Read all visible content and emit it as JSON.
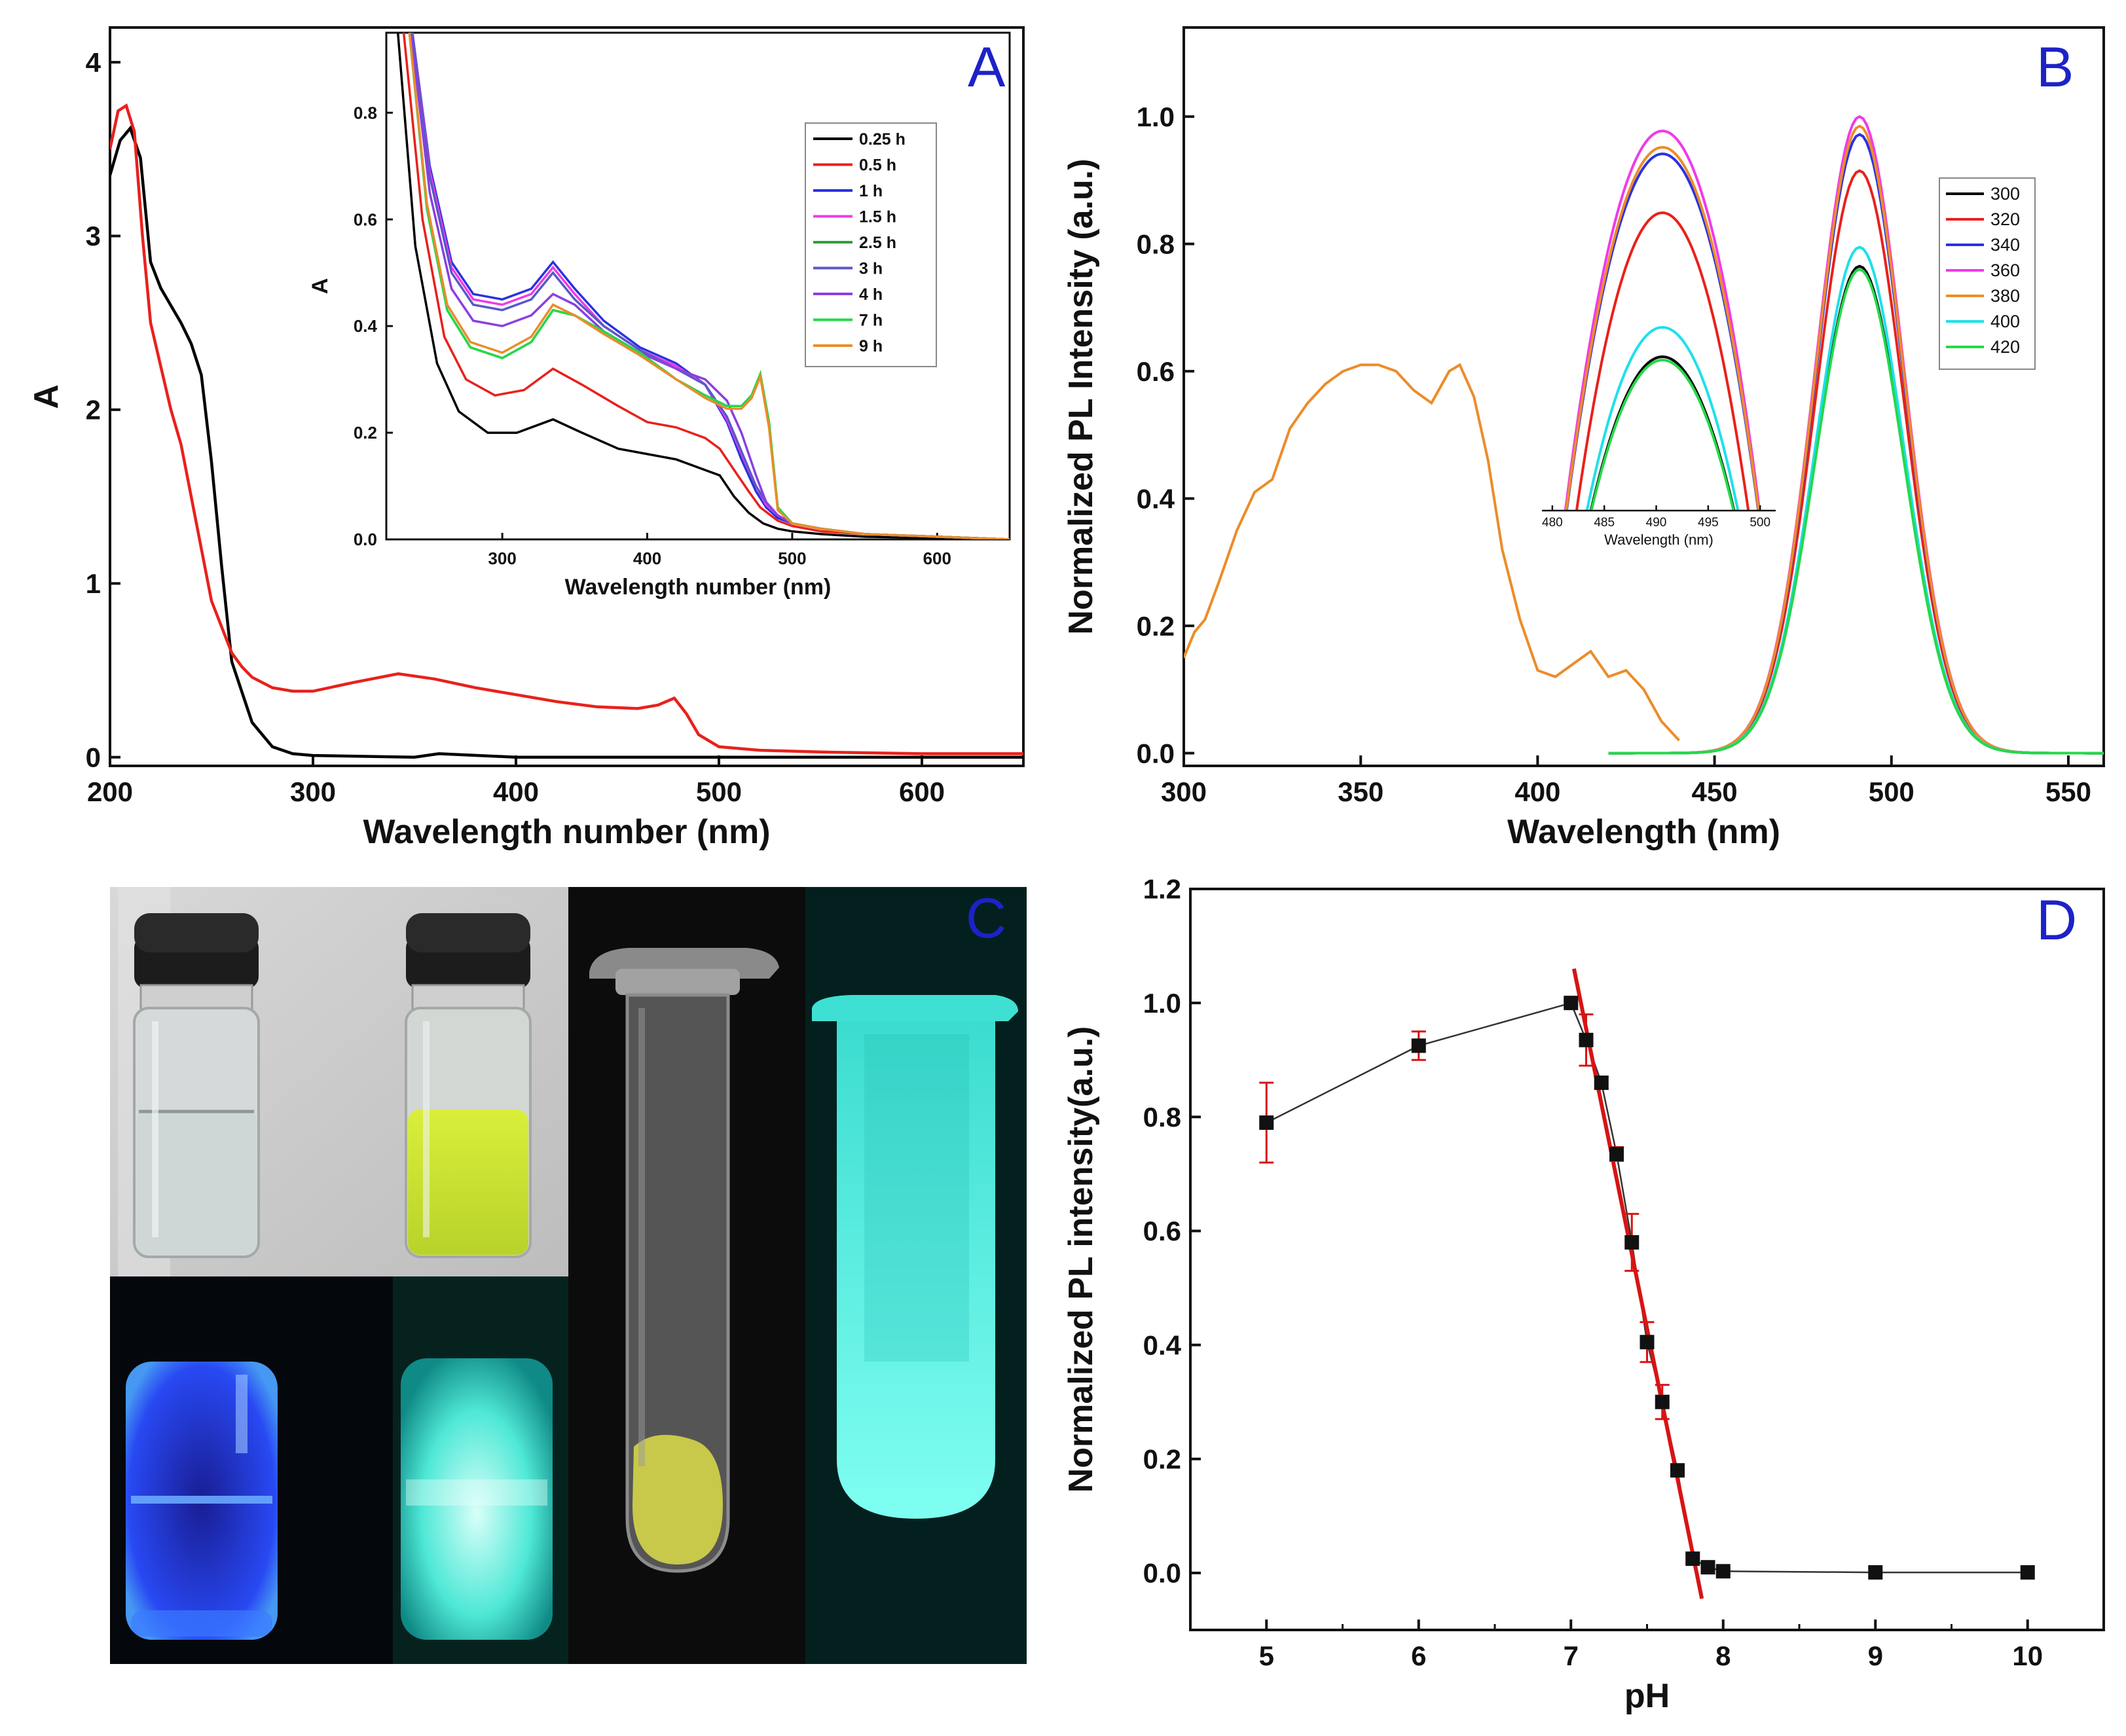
{
  "colors": {
    "axis": "#111111",
    "panel_label": "#1d22c8",
    "black": "#000000",
    "red": "#e8211c",
    "blue": "#2b31e0",
    "magenta": "#f03ae8",
    "green": "#2aa33a",
    "indigo": "#5a58c8",
    "violet": "#8a3fe0",
    "bright_green": "#25d84a",
    "orange": "#ec8c2a",
    "cyan": "#1ee0ea",
    "fit": "#d81414"
  },
  "panels": {
    "a": {
      "label": "A"
    },
    "b": {
      "label": "B"
    },
    "c": {
      "label": "C"
    },
    "d": {
      "label": "D"
    }
  },
  "chart_data": [
    {
      "id": "A",
      "type": "line",
      "xlabel": "Wavelength number (nm)",
      "ylabel": "A",
      "xlim": [
        200,
        650
      ],
      "ylim": [
        -0.05,
        4.2
      ],
      "xticks": [
        "200",
        "300",
        "400",
        "500",
        "600"
      ],
      "yticks": [
        "0",
        "1",
        "2",
        "3",
        "4"
      ],
      "series": [
        {
          "name": "black",
          "color": "#000000",
          "x": [
            200,
            205,
            210,
            215,
            220,
            225,
            230,
            235,
            240,
            245,
            250,
            255,
            260,
            270,
            280,
            290,
            300,
            350,
            362,
            400,
            500,
            650
          ],
          "y": [
            3.35,
            3.55,
            3.62,
            3.45,
            2.85,
            2.7,
            2.6,
            2.5,
            2.38,
            2.2,
            1.7,
            1.1,
            0.55,
            0.2,
            0.06,
            0.02,
            0.01,
            0.0,
            0.02,
            0.0,
            0.0,
            0.0
          ]
        },
        {
          "name": "red",
          "color": "#e8211c",
          "x": [
            200,
            204,
            208,
            212,
            216,
            220,
            225,
            230,
            235,
            240,
            245,
            250,
            255,
            260,
            265,
            270,
            280,
            290,
            300,
            320,
            342,
            360,
            380,
            400,
            420,
            440,
            460,
            470,
            478,
            484,
            490,
            500,
            520,
            550,
            600,
            650
          ],
          "y": [
            3.5,
            3.72,
            3.75,
            3.6,
            3.0,
            2.5,
            2.25,
            2.0,
            1.8,
            1.5,
            1.2,
            0.9,
            0.75,
            0.6,
            0.52,
            0.46,
            0.4,
            0.38,
            0.38,
            0.43,
            0.48,
            0.45,
            0.4,
            0.36,
            0.32,
            0.29,
            0.28,
            0.3,
            0.34,
            0.25,
            0.13,
            0.06,
            0.04,
            0.03,
            0.02,
            0.02
          ]
        }
      ]
    },
    {
      "id": "A-inset",
      "type": "line",
      "xlabel": "Wavelength number (nm)",
      "ylabel": "A",
      "xlim": [
        220,
        650
      ],
      "ylim": [
        0,
        0.95
      ],
      "xticks": [
        "300",
        "400",
        "500",
        "600"
      ],
      "yticks": [
        "0.0",
        "0.2",
        "0.4",
        "0.6",
        "0.8"
      ],
      "legend": [
        "0.25 h",
        "0.5 h",
        "1 h",
        "1.5 h",
        "2.5 h",
        "3 h",
        "4 h",
        "7 h",
        "9 h"
      ],
      "series": [
        {
          "name": "0.25 h",
          "color": "#000000",
          "x": [
            228,
            240,
            255,
            270,
            290,
            310,
            335,
            355,
            380,
            400,
            420,
            440,
            450,
            460,
            470,
            480,
            490,
            500,
            520,
            550,
            600,
            650
          ],
          "y": [
            0.95,
            0.55,
            0.33,
            0.24,
            0.2,
            0.2,
            0.225,
            0.2,
            0.17,
            0.16,
            0.15,
            0.13,
            0.12,
            0.08,
            0.05,
            0.03,
            0.02,
            0.015,
            0.01,
            0.005,
            0.003,
            0.0
          ]
        },
        {
          "name": "0.5 h",
          "color": "#e8211c",
          "x": [
            232,
            245,
            260,
            275,
            295,
            315,
            335,
            355,
            380,
            400,
            420,
            440,
            450,
            460,
            470,
            478,
            490,
            500,
            520,
            550,
            600,
            650
          ],
          "y": [
            0.95,
            0.6,
            0.38,
            0.3,
            0.27,
            0.28,
            0.32,
            0.29,
            0.25,
            0.22,
            0.21,
            0.19,
            0.17,
            0.13,
            0.09,
            0.06,
            0.035,
            0.025,
            0.015,
            0.01,
            0.005,
            0.0
          ]
        },
        {
          "name": "1 h",
          "color": "#2b31e0",
          "x": [
            238,
            250,
            265,
            280,
            300,
            320,
            335,
            350,
            370,
            395,
            420,
            440,
            455,
            465,
            475,
            482,
            490,
            500,
            520,
            550,
            600,
            650
          ],
          "y": [
            0.95,
            0.7,
            0.52,
            0.46,
            0.45,
            0.47,
            0.52,
            0.47,
            0.41,
            0.36,
            0.33,
            0.29,
            0.22,
            0.15,
            0.09,
            0.06,
            0.04,
            0.03,
            0.02,
            0.01,
            0.005,
            0.0
          ]
        },
        {
          "name": "1.5 h",
          "color": "#f03ae8",
          "x": [
            238,
            250,
            265,
            280,
            300,
            320,
            335,
            350,
            370,
            395,
            420,
            440,
            455,
            465,
            475,
            482,
            490,
            500,
            520,
            550,
            600,
            650
          ],
          "y": [
            0.95,
            0.69,
            0.51,
            0.45,
            0.44,
            0.46,
            0.51,
            0.46,
            0.4,
            0.355,
            0.325,
            0.29,
            0.225,
            0.16,
            0.1,
            0.065,
            0.045,
            0.03,
            0.02,
            0.01,
            0.005,
            0.0
          ]
        },
        {
          "name": "2.5 h",
          "color": "#2aa33a",
          "x": [
            236,
            248,
            262,
            278,
            300,
            320,
            335,
            350,
            370,
            395,
            420,
            440,
            455,
            465,
            472,
            478,
            484,
            490,
            500,
            520,
            550,
            600,
            650
          ],
          "y": [
            0.95,
            0.62,
            0.43,
            0.36,
            0.34,
            0.37,
            0.43,
            0.42,
            0.39,
            0.35,
            0.3,
            0.27,
            0.25,
            0.25,
            0.27,
            0.31,
            0.22,
            0.06,
            0.03,
            0.02,
            0.01,
            0.005,
            0.0
          ]
        },
        {
          "name": "3 h",
          "color": "#5a58c8",
          "x": [
            238,
            250,
            265,
            280,
            300,
            320,
            335,
            350,
            370,
            395,
            420,
            440,
            455,
            465,
            475,
            482,
            490,
            500,
            520,
            550,
            600,
            650
          ],
          "y": [
            0.95,
            0.68,
            0.5,
            0.44,
            0.43,
            0.45,
            0.5,
            0.45,
            0.4,
            0.355,
            0.32,
            0.29,
            0.23,
            0.165,
            0.1,
            0.07,
            0.045,
            0.03,
            0.02,
            0.01,
            0.005,
            0.0
          ]
        },
        {
          "name": "4 h",
          "color": "#8a3fe0",
          "x": [
            237,
            250,
            265,
            280,
            300,
            320,
            335,
            350,
            370,
            395,
            420,
            440,
            455,
            465,
            475,
            482,
            490,
            500,
            520,
            550,
            600,
            650
          ],
          "y": [
            0.95,
            0.65,
            0.47,
            0.41,
            0.4,
            0.42,
            0.46,
            0.44,
            0.39,
            0.35,
            0.32,
            0.3,
            0.26,
            0.2,
            0.12,
            0.07,
            0.045,
            0.03,
            0.02,
            0.01,
            0.005,
            0.0
          ]
        },
        {
          "name": "7 h",
          "color": "#25d84a",
          "x": [
            236,
            248,
            262,
            278,
            300,
            320,
            335,
            350,
            370,
            395,
            420,
            440,
            455,
            465,
            472,
            478,
            484,
            490,
            500,
            520,
            550,
            600,
            650
          ],
          "y": [
            0.95,
            0.62,
            0.43,
            0.36,
            0.34,
            0.37,
            0.43,
            0.42,
            0.39,
            0.35,
            0.3,
            0.27,
            0.25,
            0.25,
            0.27,
            0.31,
            0.22,
            0.06,
            0.03,
            0.02,
            0.01,
            0.005,
            0.0
          ]
        },
        {
          "name": "9 h",
          "color": "#ec8c2a",
          "x": [
            236,
            248,
            262,
            278,
            300,
            320,
            335,
            350,
            370,
            395,
            420,
            440,
            455,
            465,
            472,
            478,
            484,
            490,
            500,
            520,
            550,
            600,
            650
          ],
          "y": [
            0.95,
            0.63,
            0.44,
            0.37,
            0.35,
            0.38,
            0.44,
            0.42,
            0.385,
            0.345,
            0.3,
            0.265,
            0.245,
            0.245,
            0.265,
            0.305,
            0.21,
            0.055,
            0.03,
            0.02,
            0.01,
            0.005,
            0.0
          ]
        }
      ]
    },
    {
      "id": "B",
      "type": "line",
      "xlabel": "Wavelength (nm)",
      "ylabel": "Normalized PL Intensity (a.u.)",
      "xlim": [
        300,
        560
      ],
      "ylim": [
        -0.02,
        1.14
      ],
      "xticks": [
        "300",
        "350",
        "400",
        "450",
        "500",
        "550"
      ],
      "yticks": [
        "0.0",
        "0.2",
        "0.4",
        "0.6",
        "0.8",
        "1.0"
      ],
      "legend": [
        "300",
        "320",
        "340",
        "360",
        "380",
        "400",
        "420"
      ],
      "excitation": {
        "color": "#ec8c2a",
        "x": [
          300,
          303,
          306,
          310,
          315,
          320,
          325,
          330,
          335,
          340,
          345,
          350,
          355,
          360,
          365,
          370,
          375,
          378,
          382,
          386,
          390,
          395,
          400,
          405,
          410,
          415,
          420,
          425,
          430,
          435,
          440
        ],
        "y": [
          0.15,
          0.19,
          0.21,
          0.27,
          0.35,
          0.41,
          0.43,
          0.51,
          0.55,
          0.58,
          0.6,
          0.61,
          0.61,
          0.6,
          0.57,
          0.55,
          0.6,
          0.61,
          0.56,
          0.46,
          0.32,
          0.21,
          0.13,
          0.12,
          0.14,
          0.16,
          0.12,
          0.13,
          0.1,
          0.05,
          0.02
        ]
      },
      "peak_center": 491,
      "peak_sigma": 12.5,
      "series": [
        {
          "name": "300",
          "color": "#000000",
          "peak": 0.765
        },
        {
          "name": "320",
          "color": "#e8211c",
          "peak": 0.915
        },
        {
          "name": "340",
          "color": "#2b31e0",
          "peak": 0.972
        },
        {
          "name": "360",
          "color": "#f03ae8",
          "peak": 1.0
        },
        {
          "name": "380",
          "color": "#ec8c2a",
          "peak": 0.985
        },
        {
          "name": "400",
          "color": "#1ee0ea",
          "peak": 0.795
        },
        {
          "name": "420",
          "color": "#25d84a",
          "peak": 0.76
        }
      ]
    },
    {
      "id": "B-inset",
      "type": "line",
      "xlabel": "Wavelength (nm)",
      "xlim": [
        479,
        501.5
      ],
      "ylim": [
        0.4,
        1.01
      ],
      "xticks": [
        "480",
        "485",
        "490",
        "495",
        "500"
      ],
      "series": [
        {
          "name": "300",
          "color": "#000000",
          "peak": 0.635
        },
        {
          "name": "320",
          "color": "#e8211c",
          "peak": 0.855
        },
        {
          "name": "340",
          "color": "#2b31e0",
          "peak": 0.945
        },
        {
          "name": "360",
          "color": "#f03ae8",
          "peak": 0.98
        },
        {
          "name": "380",
          "color": "#ec8c2a",
          "peak": 0.955
        },
        {
          "name": "400",
          "color": "#1ee0ea",
          "peak": 0.68
        },
        {
          "name": "420",
          "color": "#25d84a",
          "peak": 0.63
        }
      ]
    },
    {
      "id": "D",
      "type": "scatter",
      "xlabel": "pH",
      "ylabel": "Normalized PL intensity(a.u.)",
      "xlim": [
        4.5,
        10.5
      ],
      "ylim": [
        -0.1,
        1.2
      ],
      "xticks": [
        "5",
        "6",
        "7",
        "8",
        "9",
        "10"
      ],
      "yticks": [
        "0.0",
        "0.2",
        "0.4",
        "0.6",
        "0.8",
        "1.0",
        "1.2"
      ],
      "x": [
        5,
        6,
        7,
        7.1,
        7.2,
        7.3,
        7.4,
        7.5,
        7.6,
        7.7,
        7.8,
        7.9,
        8,
        9,
        10
      ],
      "y": [
        0.79,
        0.925,
        1.0,
        0.935,
        0.86,
        0.735,
        0.58,
        0.405,
        0.3,
        0.18,
        0.025,
        0.01,
        0.003,
        0.001,
        0.001
      ],
      "err": [
        0.07,
        0.025,
        0.005,
        0.045,
        0.01,
        0.012,
        0.05,
        0.035,
        0.03,
        0.01,
        0.008,
        0.005,
        0.005,
        0.0,
        0.0
      ],
      "fit": {
        "color": "#d81414",
        "x": [
          7.02,
          7.86
        ],
        "y": [
          1.06,
          -0.045
        ]
      }
    }
  ]
}
